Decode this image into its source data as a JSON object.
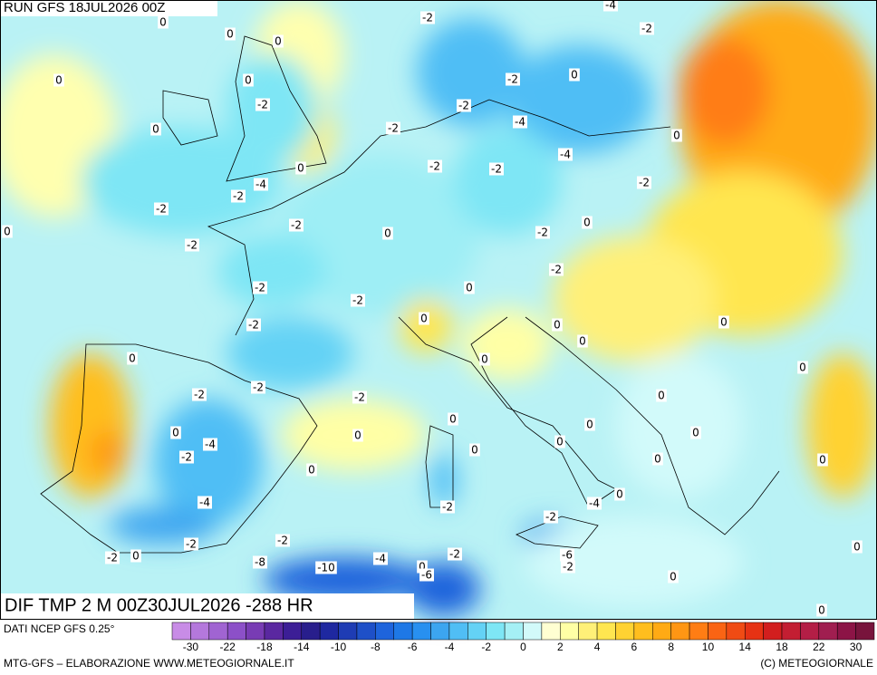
{
  "header": {
    "run": "RUN GFS 18JUL2026 00Z",
    "field": "DIF TMP 2 M 00Z30JUL2026 -288 HR"
  },
  "source": "DATI NCEP GFS 0.25°",
  "credit_left": "MTG-GFS – ELABORAZIONE WWW.METEOGIORNALE.IT",
  "credit_right": "(C) METEOGIORNALE",
  "colorbar": {
    "colors": [
      "#c88ce6",
      "#b478dc",
      "#a064d2",
      "#8c50c8",
      "#783cb4",
      "#5a28a0",
      "#3c1e96",
      "#281e8c",
      "#1e28a0",
      "#1e3cb4",
      "#1e50c8",
      "#1e64dc",
      "#1e78e6",
      "#2890f0",
      "#3ca5f0",
      "#50bef5",
      "#64d2f5",
      "#7ee6f5",
      "#a5f0f5",
      "#d2fafa",
      "#ffffd2",
      "#ffffa5",
      "#fff078",
      "#ffe650",
      "#ffd232",
      "#ffbe1e",
      "#ffaa14",
      "#ff9614",
      "#ff7d14",
      "#fa6414",
      "#f04b14",
      "#e63214",
      "#d21e1e",
      "#c31e32",
      "#b41e46",
      "#a01e50",
      "#8c1446",
      "#78143c"
    ],
    "labels": [
      -30,
      -22,
      -18,
      -14,
      -10,
      -8,
      -6,
      -4,
      -2,
      0,
      2,
      4,
      6,
      8,
      10,
      14,
      18,
      22,
      30
    ]
  },
  "contour_labels": [
    "0",
    "-2",
    "-4",
    "0",
    "0",
    "0",
    "0",
    "-2",
    "0",
    "-2",
    "-2",
    "-2",
    "0",
    "-4",
    "-2",
    "0",
    "0",
    "-2",
    "-2",
    "-4",
    "-4",
    "-2",
    "-2",
    "-2",
    "-2",
    "0",
    "0",
    "-2",
    "0",
    "-2",
    "-2",
    "-2",
    "0",
    "-2",
    "0",
    "-2",
    "0",
    "0",
    "0",
    "0",
    "0",
    "0",
    "-2",
    "-2",
    "-2",
    "0",
    "0",
    "0",
    "0",
    "0",
    "-4",
    "-2",
    "0",
    "0",
    "0",
    "0",
    "0",
    "0",
    "0",
    "-4",
    "-2",
    "-4",
    "-2",
    "-2",
    "-2",
    "-2",
    "0",
    "-8",
    "-10",
    "-4",
    "0",
    "-2",
    "-6",
    "-2",
    "-6",
    "0",
    "0",
    "0"
  ]
}
